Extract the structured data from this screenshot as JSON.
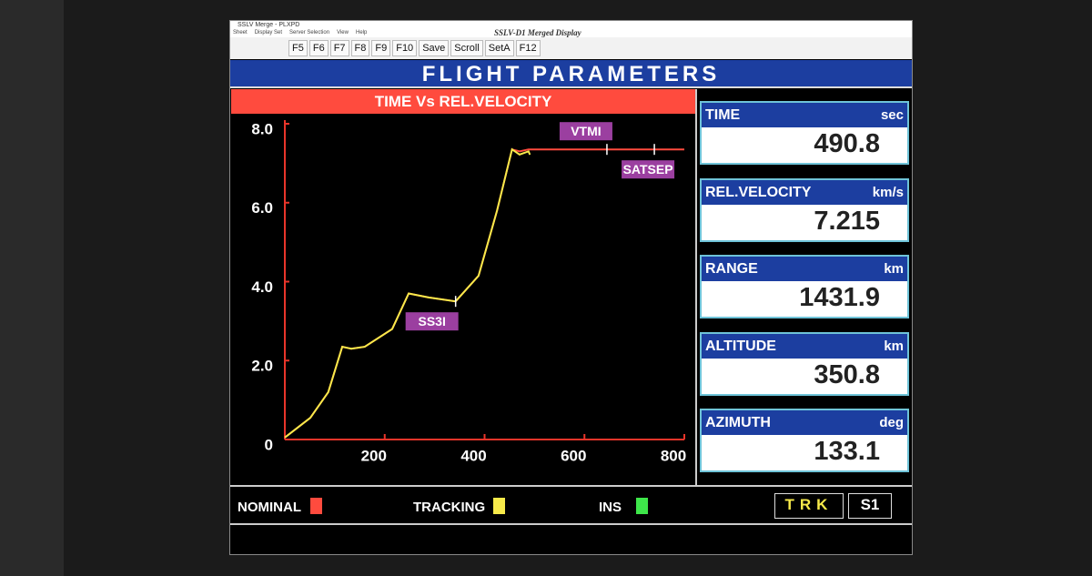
{
  "window": {
    "app_title": "SSLV Merge - PLXPD",
    "title": "SSLV-D1  Merged  Display",
    "menu": [
      "Sheet",
      "Display Set",
      "Server Selection",
      "View",
      "Help"
    ],
    "toolbar": [
      "F5",
      "F6",
      "F7",
      "F8",
      "F9",
      "F10",
      "Save",
      "Scroll",
      "SetA",
      "F12"
    ]
  },
  "header": {
    "title": "FLIGHT PARAMETERS"
  },
  "chart_data": {
    "type": "line",
    "title": "TIME Vs REL.VELOCITY",
    "xlim": [
      0,
      800
    ],
    "xticks": [
      200,
      400,
      600,
      800
    ],
    "ylim": [
      0,
      8
    ],
    "yticks": [
      {
        "value": 8,
        "label": "8.0"
      },
      {
        "value": 6,
        "label": "6.0"
      },
      {
        "value": 4,
        "label": "4.0"
      },
      {
        "value": 2,
        "label": "2.0"
      },
      0
    ],
    "series": [
      {
        "name": "NOMINAL",
        "color": "#ff4b3e",
        "x": [
          0,
          51,
          87,
          115,
          133,
          160,
          215,
          248,
          288,
          342,
          388,
          425,
          455,
          470,
          488,
          520,
          600,
          700,
          800
        ],
        "values": [
          0.05,
          0.55,
          1.2,
          2.35,
          2.3,
          2.35,
          2.8,
          3.7,
          3.6,
          3.5,
          4.15,
          5.8,
          7.35,
          7.3,
          7.35,
          7.35,
          7.35,
          7.35,
          7.35
        ]
      },
      {
        "name": "TRACKING",
        "color": "#f7ea4a",
        "x": [
          0,
          51,
          87,
          115,
          133,
          160,
          215,
          248,
          288,
          342,
          388,
          425,
          455,
          470,
          488,
          490.8
        ],
        "values": [
          0.05,
          0.55,
          1.2,
          2.35,
          2.3,
          2.35,
          2.8,
          3.7,
          3.6,
          3.5,
          4.15,
          5.8,
          7.35,
          7.22,
          7.3,
          7.215
        ]
      },
      {
        "name": "INS",
        "color": "#3ee64a",
        "x": [],
        "values": []
      }
    ],
    "annotations": [
      {
        "text": "VTMI",
        "x": 645
      },
      {
        "text": "SATSEP",
        "x": 740
      },
      {
        "text": "SS3I",
        "x": 342
      }
    ]
  },
  "parameters": [
    {
      "label": "TIME",
      "unit": "sec",
      "value": 490.8
    },
    {
      "label": "REL.VELOCITY",
      "unit": "km/s",
      "value": 7.215
    },
    {
      "label": "RANGE",
      "unit": "km",
      "value": 1431.9
    },
    {
      "label": "ALTITUDE",
      "unit": "km",
      "value": 350.8
    },
    {
      "label": "AZIMUTH",
      "unit": "deg",
      "value": 133.1
    }
  ],
  "status": [
    "TRK",
    "S1"
  ]
}
